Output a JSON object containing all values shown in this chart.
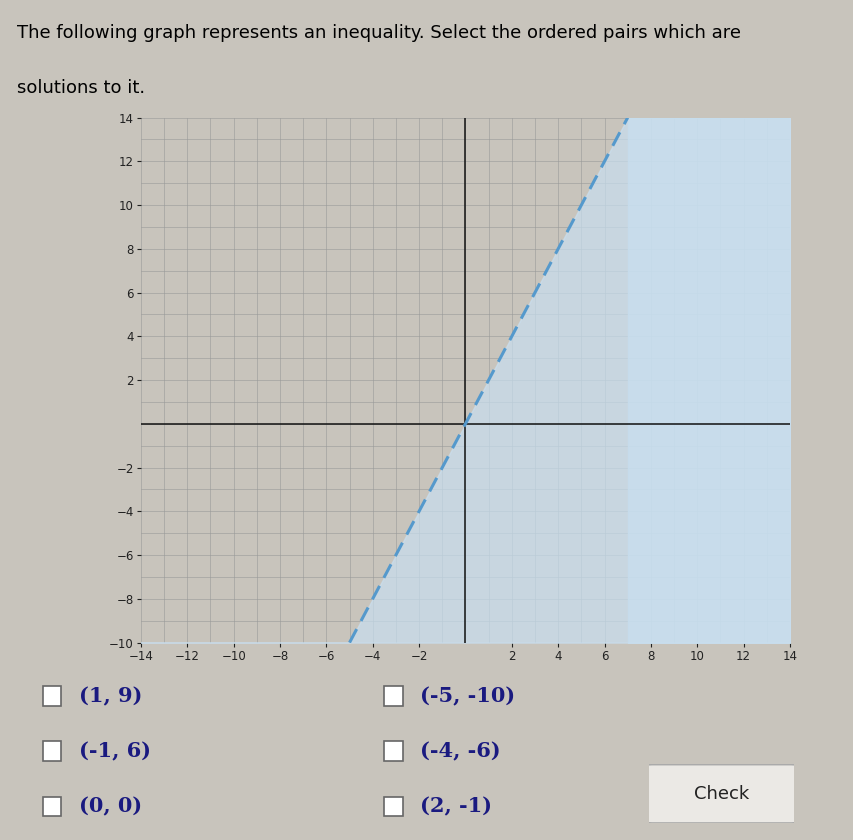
{
  "xlim": [
    -14,
    14
  ],
  "ylim": [
    -10,
    14
  ],
  "xticks": [
    -14,
    -12,
    -10,
    -8,
    -6,
    -4,
    -2,
    2,
    4,
    6,
    8,
    10,
    12,
    14
  ],
  "yticks": [
    -10,
    -8,
    -6,
    -4,
    -2,
    2,
    4,
    6,
    8,
    10,
    12,
    14
  ],
  "slope": 2,
  "intercept": 0,
  "shade_color": "#c8dff0",
  "shade_alpha": 0.7,
  "line_color": "#5599cc",
  "line_width": 2.2,
  "plot_bg_left": "#c8c4bc",
  "plot_bg_right": "#c8c4bc",
  "grid_major_color": "#aaaaaa",
  "grid_minor_color": "#bbbbbb",
  "axis_color": "#111111",
  "outer_bg": "#c8c4bc",
  "title_line1": "The following graph represents an inequality. Select the ordered pairs which are",
  "title_line2": "solutions to it.",
  "title_fontsize": 13,
  "checkboxes_left": [
    {
      "label": "(1, 9)"
    },
    {
      "label": "(-1, 6)"
    },
    {
      "label": "(0, 0)"
    }
  ],
  "checkboxes_right": [
    {
      "label": "(-5, -10)"
    },
    {
      "label": "(-4, -6)"
    },
    {
      "label": "(2, -1)"
    }
  ],
  "check_button_label": "Check"
}
